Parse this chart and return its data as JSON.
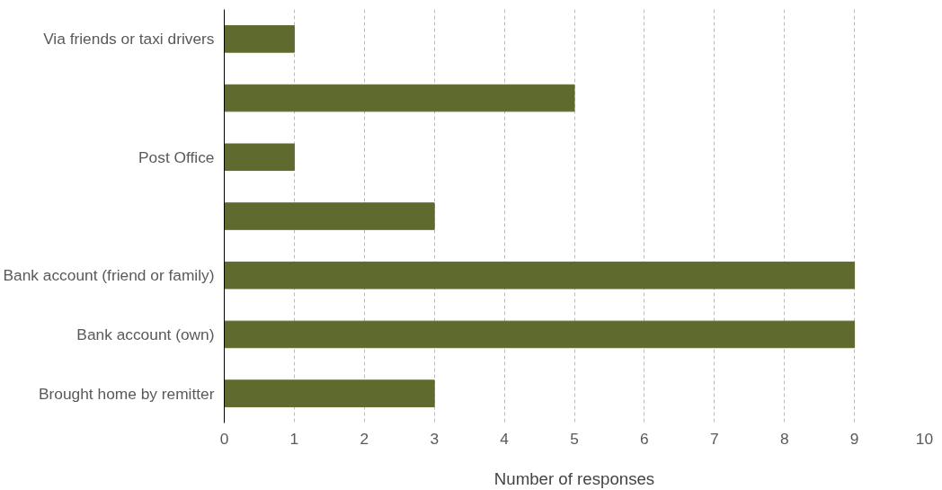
{
  "chart_data": {
    "type": "bar",
    "orientation": "horizontal",
    "xlabel": "Number of responses",
    "categories": [
      "Via friends or taxi drivers",
      null,
      "Post Office",
      null,
      "Bank account (friend or family)",
      "Bank account (own)",
      "Brought home by remitter"
    ],
    "values": [
      1,
      5,
      1,
      3,
      9,
      9,
      3
    ],
    "color": "#5f6b2e",
    "xlim": [
      0,
      10
    ],
    "xticks": [
      0,
      1,
      2,
      3,
      4,
      5,
      6,
      7,
      8,
      9,
      10
    ],
    "grid": "x"
  }
}
